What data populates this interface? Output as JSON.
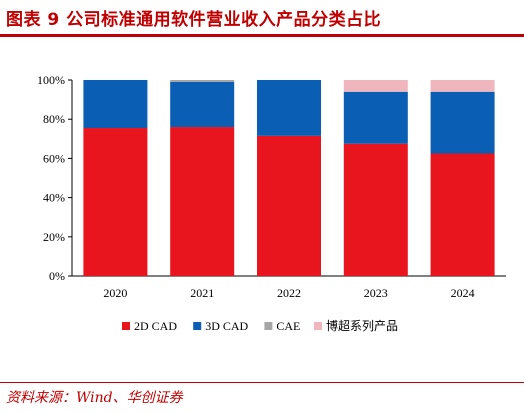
{
  "header": {
    "title": "图表 9   公司标准通用软件营业收入产品分类占比"
  },
  "footer": {
    "source": "资料来源：Wind、华创证券"
  },
  "chart_data": {
    "type": "bar",
    "stacked": true,
    "categories": [
      "2020",
      "2021",
      "2022",
      "2023",
      "2024"
    ],
    "series": [
      {
        "name": "2D CAD",
        "color": "#e8141e",
        "values": [
          75.5,
          76.0,
          71.5,
          67.5,
          62.5
        ]
      },
      {
        "name": "3D CAD",
        "color": "#0a5fb4",
        "values": [
          24.5,
          23.0,
          28.5,
          26.5,
          31.5
        ]
      },
      {
        "name": "CAE",
        "color": "#a6a6a6",
        "values": [
          0,
          1.0,
          0,
          0,
          0
        ]
      },
      {
        "name": "博超系列产品",
        "color": "#efb7bd",
        "values": [
          0,
          0,
          0,
          6.0,
          6.0
        ]
      }
    ],
    "yticks": [
      "0%",
      "20%",
      "40%",
      "60%",
      "80%",
      "100%"
    ],
    "ylim": [
      0,
      100
    ],
    "legend_position": "bottom",
    "grid": false
  }
}
